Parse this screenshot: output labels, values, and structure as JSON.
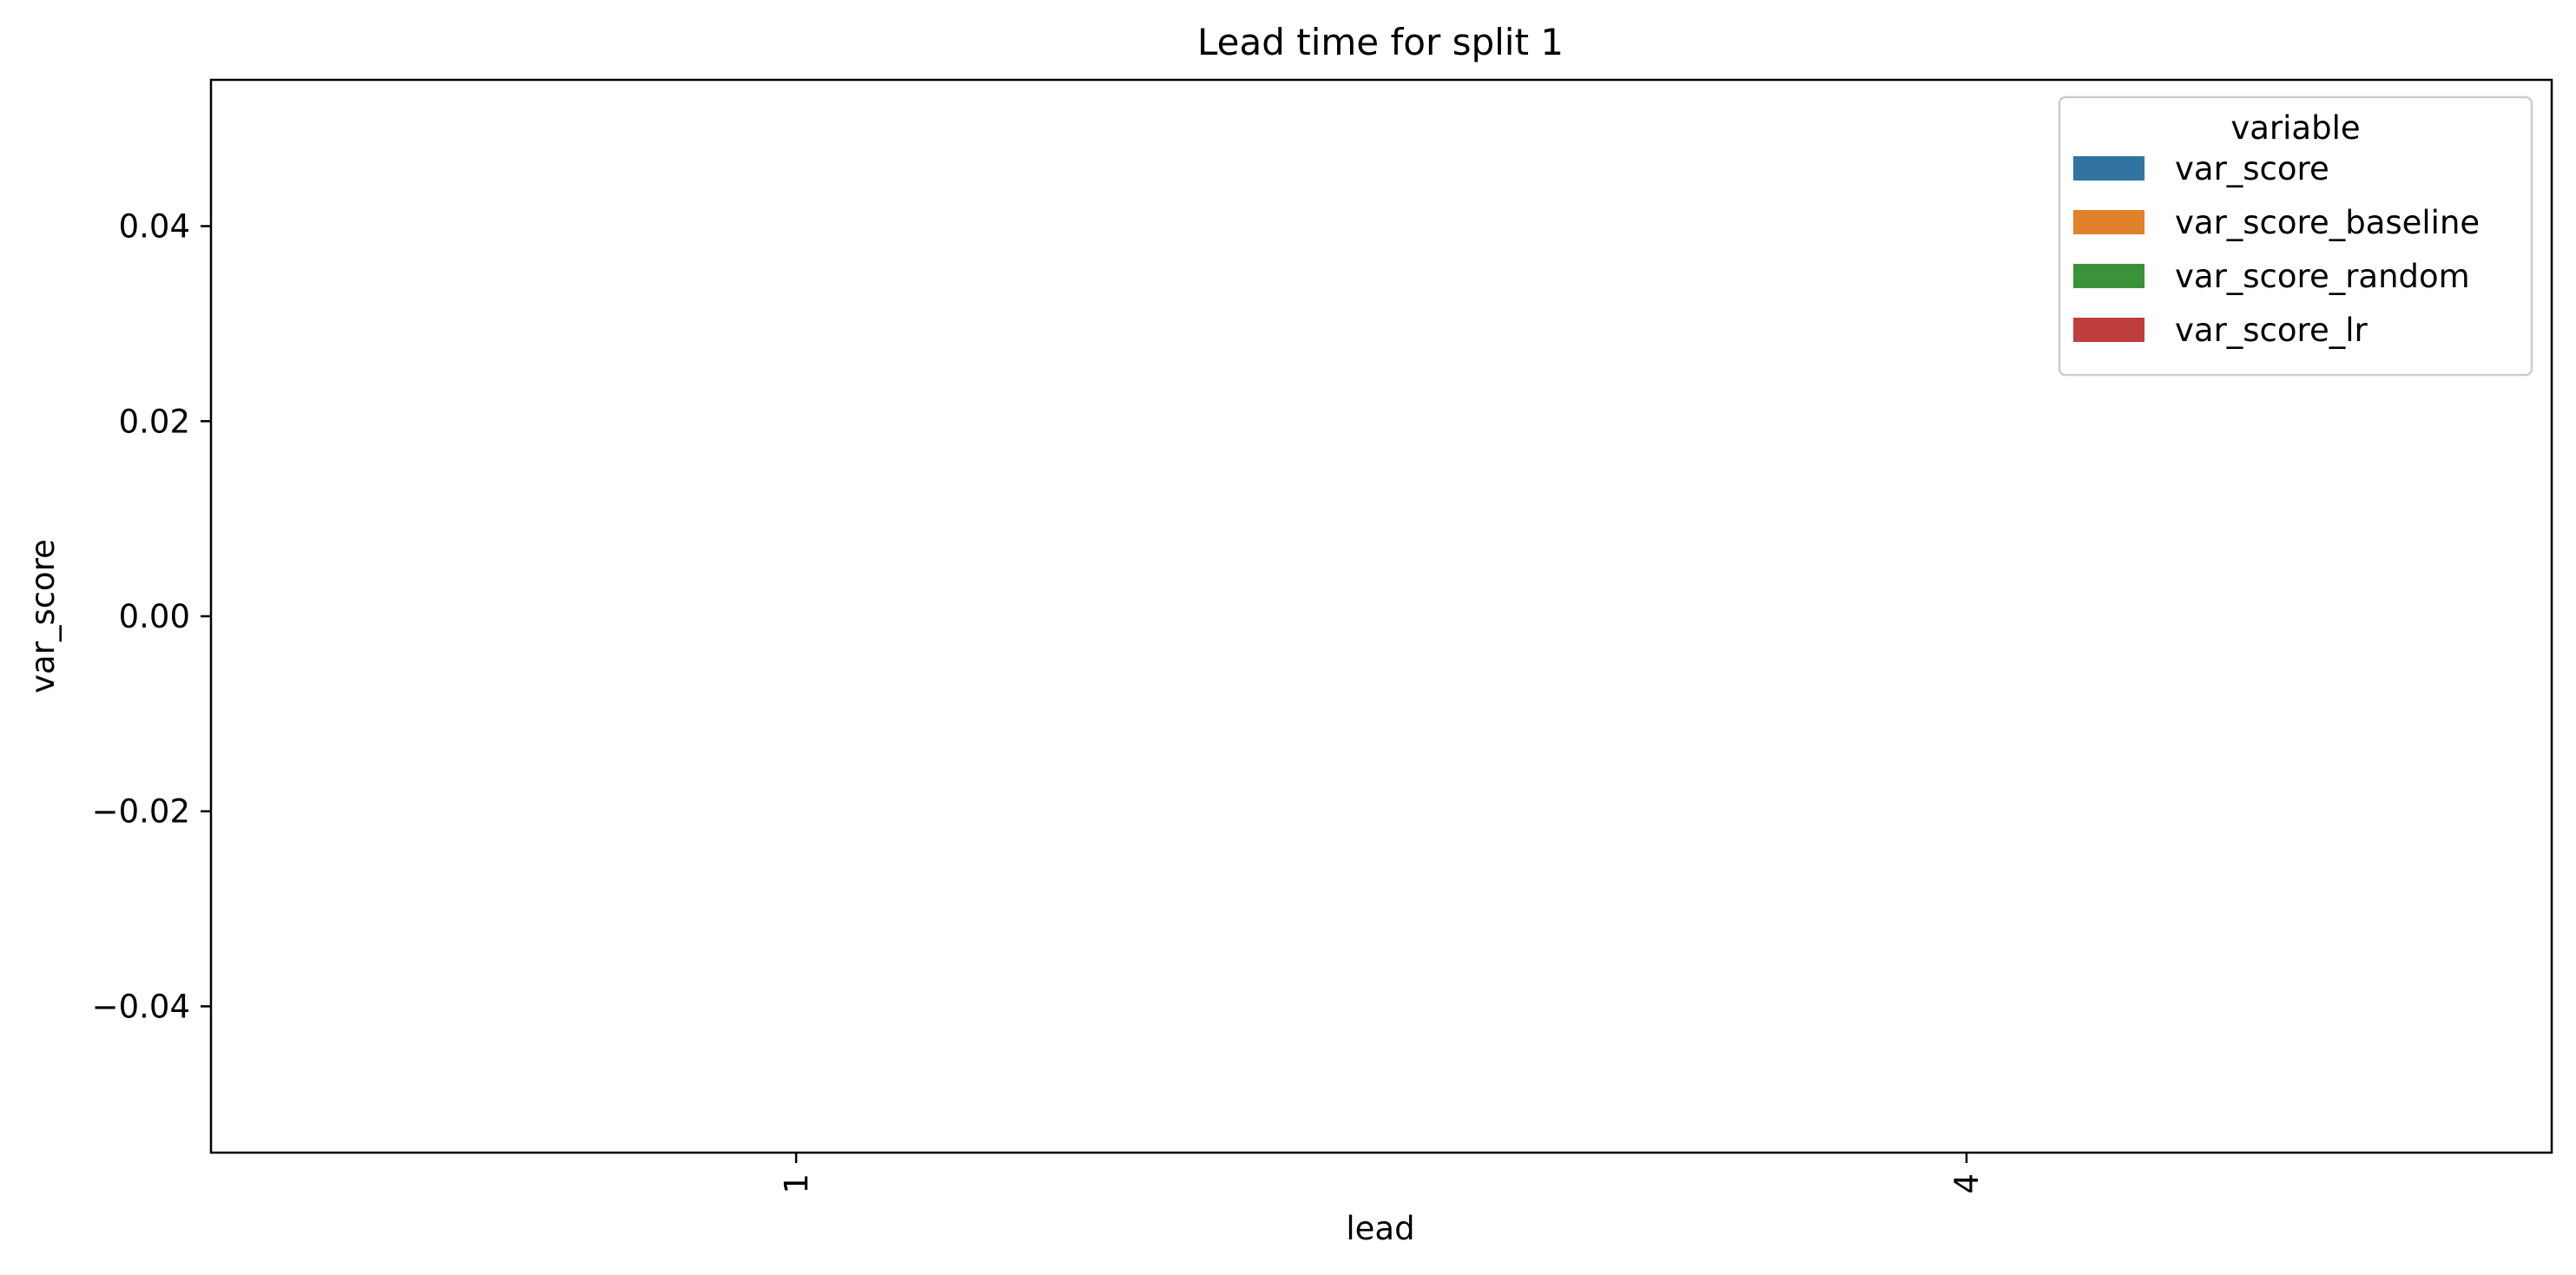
{
  "chart_data": {
    "type": "bar",
    "title": "Lead time for split 1",
    "xlabel": "lead",
    "ylabel": "var_score",
    "categories": [
      "1",
      "4"
    ],
    "ylim": [
      -0.055,
      0.055
    ],
    "yticks": [
      -0.04,
      -0.02,
      0.0,
      0.02,
      0.04
    ],
    "ytick_labels": [
      "−0.04",
      "−0.02",
      "0.00",
      "0.02",
      "0.04"
    ],
    "grid": false,
    "legend": {
      "title": "variable",
      "placement": "top-right",
      "entries": [
        "var_score",
        "var_score_baseline",
        "var_score_random",
        "var_score_lr"
      ]
    },
    "series": [
      {
        "name": "var_score",
        "color": "#3274a1",
        "values": [
          null,
          null
        ]
      },
      {
        "name": "var_score_baseline",
        "color": "#e1812c",
        "values": [
          null,
          null
        ]
      },
      {
        "name": "var_score_random",
        "color": "#3a923a",
        "values": [
          null,
          null
        ]
      },
      {
        "name": "var_score_lr",
        "color": "#c03d3e",
        "values": [
          null,
          null
        ]
      }
    ]
  }
}
